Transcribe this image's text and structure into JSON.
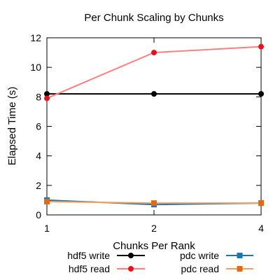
{
  "chart_data": {
    "type": "line",
    "title": "Per Chunk Scaling by Chunks",
    "xlabel": "Chunks Per Rank",
    "ylabel": "Elapsed Time (s)",
    "x": [
      "1",
      "2",
      "4"
    ],
    "ylim": [
      0,
      12
    ],
    "yticks": [
      "0",
      "2",
      "4",
      "6",
      "8",
      "10",
      "12"
    ],
    "grid": false,
    "legend_position": "bottom",
    "series": [
      {
        "name": "hdf5 write",
        "values": [
          8.2,
          8.2,
          8.2
        ],
        "color": "#000000",
        "marker": "circle"
      },
      {
        "name": "hdf5 read",
        "values": [
          7.9,
          11.0,
          11.4
        ],
        "color": "#ff7f7f",
        "marker_color": "#e8101a",
        "marker": "circle"
      },
      {
        "name": "pdc write",
        "values": [
          1.0,
          0.7,
          0.8
        ],
        "color": "#1a76b4",
        "marker": "square"
      },
      {
        "name": "pdc read",
        "values": [
          0.9,
          0.8,
          0.8
        ],
        "color": "#f0a060",
        "marker_color": "#e36a12",
        "marker": "square"
      }
    ]
  }
}
